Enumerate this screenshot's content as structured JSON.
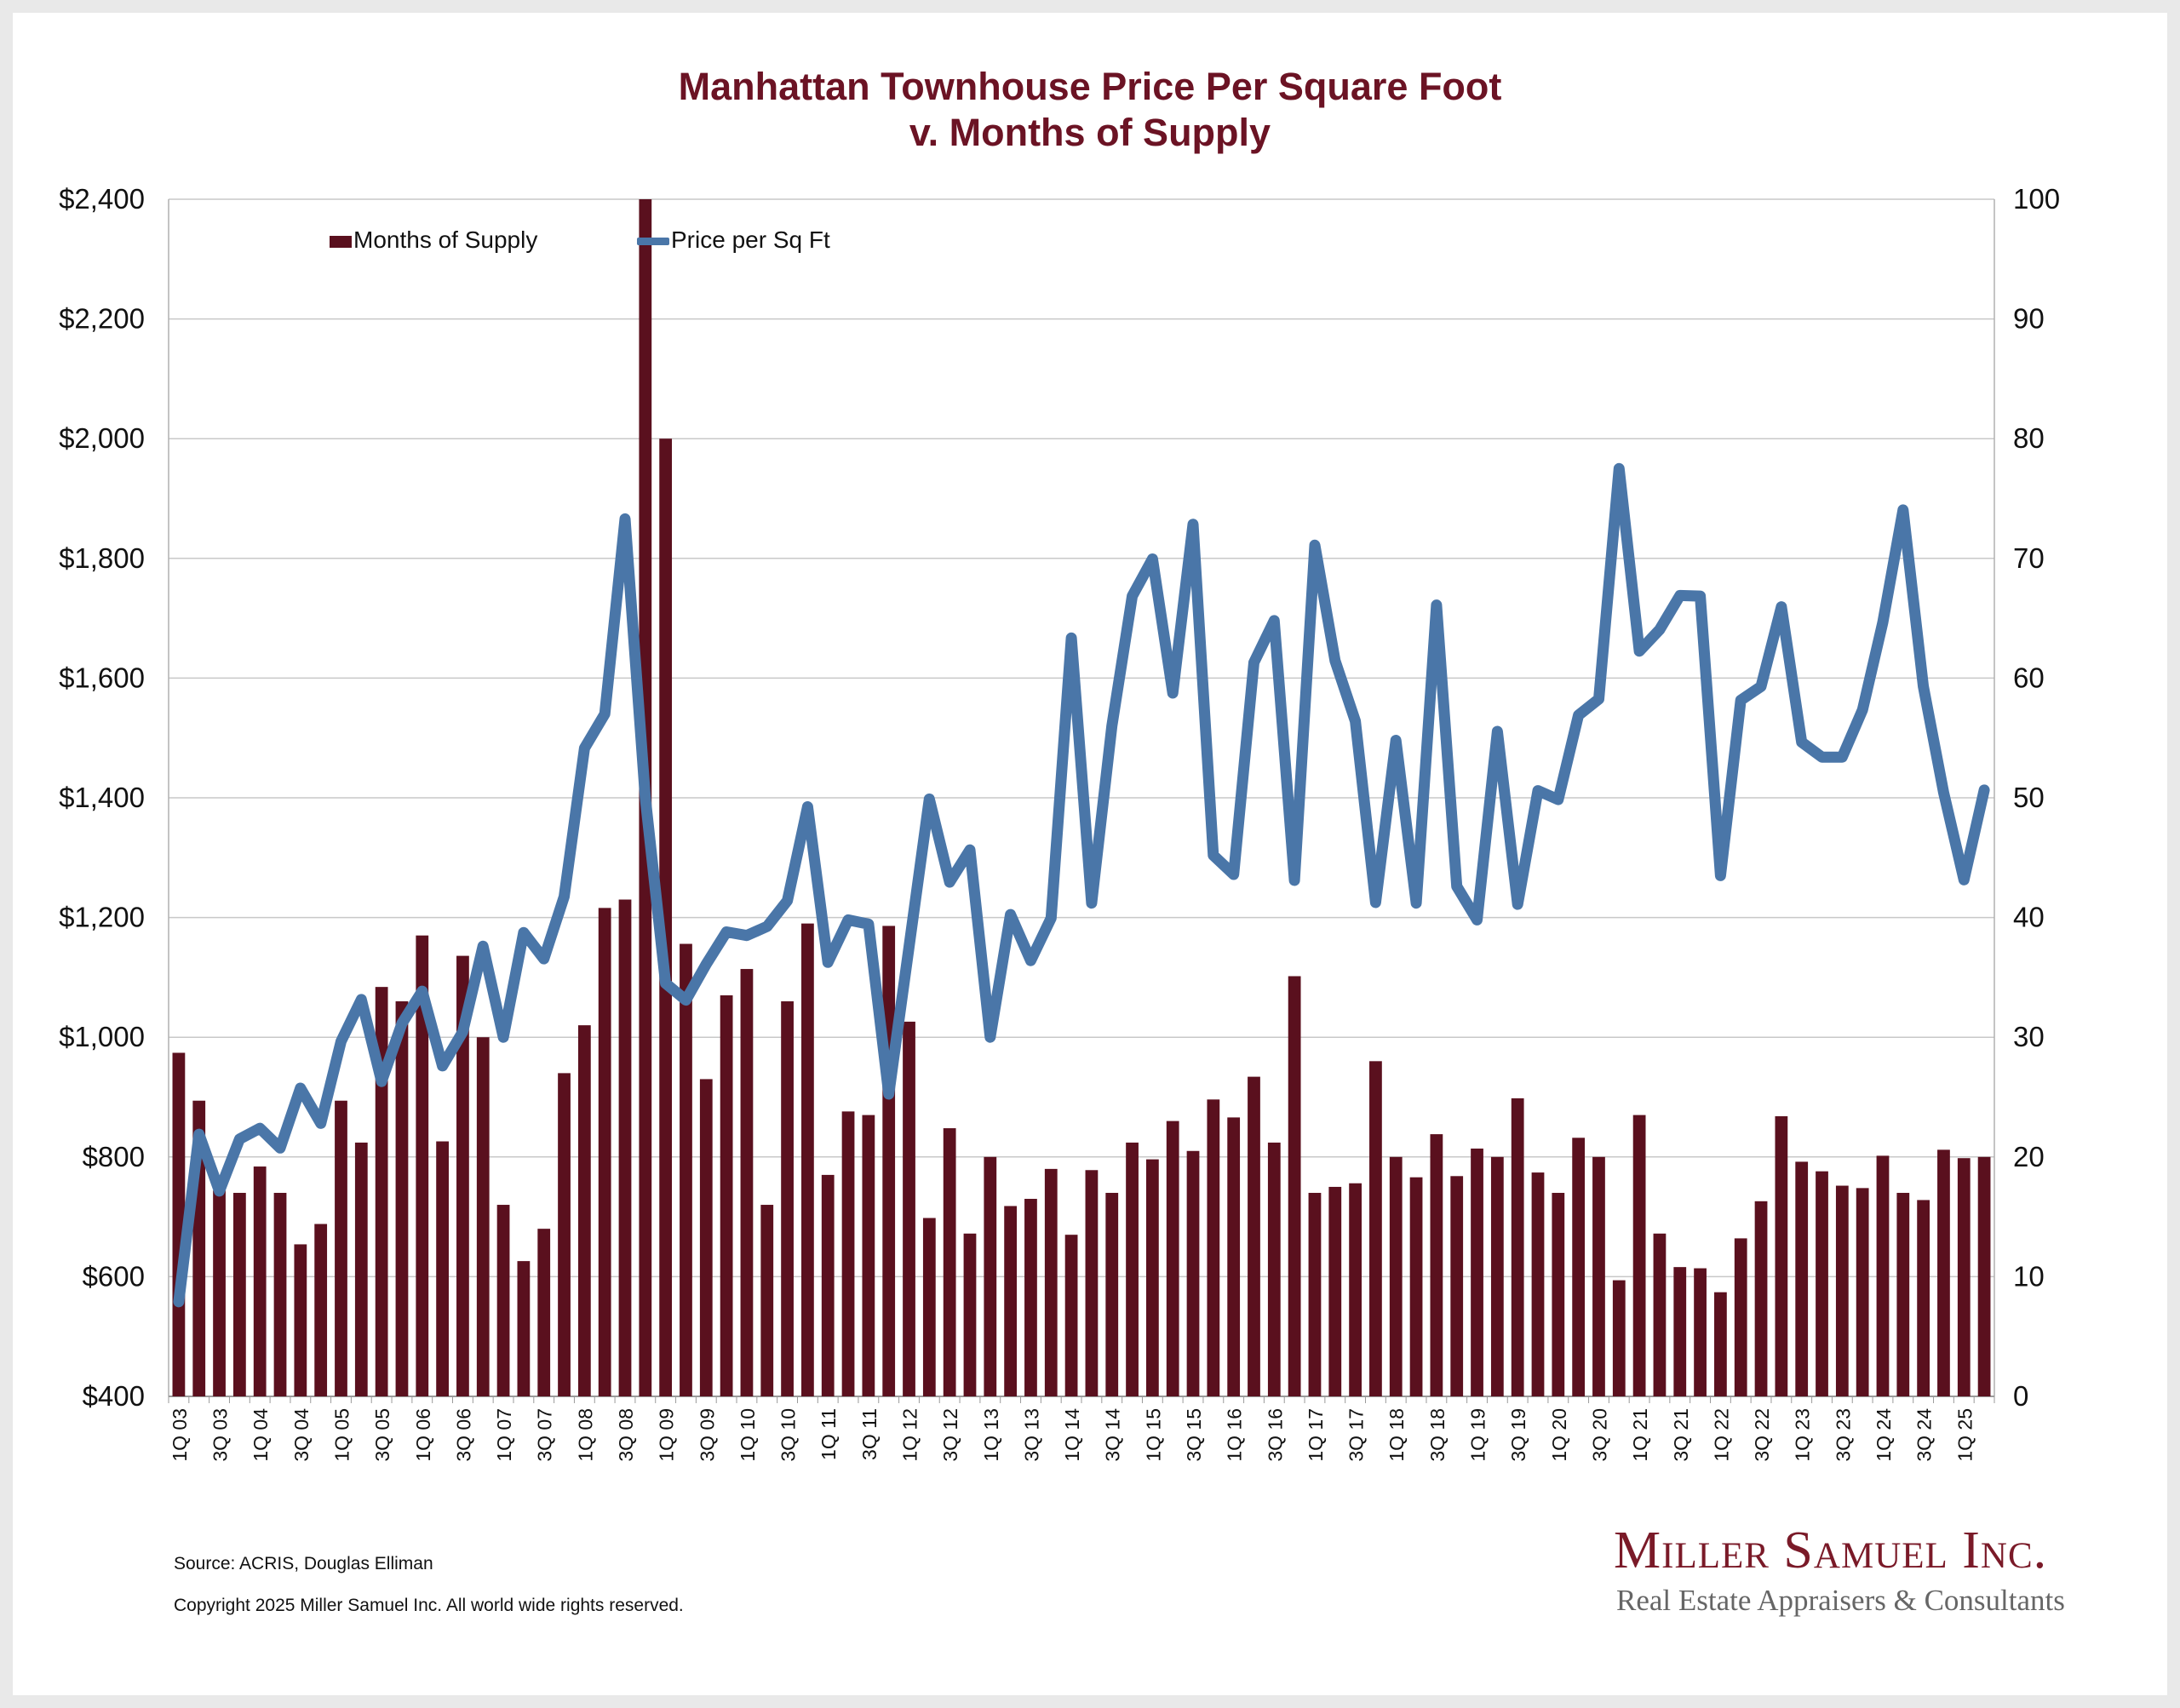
{
  "title_line1": "Manhattan Townhouse Price Per Square Foot",
  "title_line2": "v. Months of Supply",
  "source": "Source: ACRIS, Douglas Elliman",
  "copyright": "Copyright 2025 Miller Samuel Inc.  All world wide rights reserved.",
  "logo": {
    "name": "Miller Samuel Inc.",
    "tagline": "Real Estate Appraisers & Consultants"
  },
  "colors": {
    "bars": "#5a101e",
    "line": "#4a76a8",
    "title": "#6b1324",
    "grid": "#c8c8c8"
  },
  "chart_data": {
    "type": "bar+line",
    "title": "Manhattan Townhouse Price Per Square Foot v. Months of Supply",
    "categories": [
      "1Q 03",
      "2Q 03",
      "3Q 03",
      "4Q 03",
      "1Q 04",
      "2Q 04",
      "3Q 04",
      "4Q 04",
      "1Q 05",
      "2Q 05",
      "3Q 05",
      "4Q 05",
      "1Q 06",
      "2Q 06",
      "3Q 06",
      "4Q 06",
      "1Q 07",
      "2Q 07",
      "3Q 07",
      "4Q 07",
      "1Q 08",
      "2Q 08",
      "3Q 08",
      "4Q 08",
      "1Q 09",
      "2Q 09",
      "3Q 09",
      "4Q 09",
      "1Q 10",
      "2Q 10",
      "3Q 10",
      "4Q 10",
      "1Q 11",
      "2Q 11",
      "3Q 11",
      "4Q 11",
      "1Q 12",
      "2Q 12",
      "3Q 12",
      "4Q 12",
      "1Q 13",
      "2Q 13",
      "3Q 13",
      "4Q 13",
      "1Q 14",
      "2Q 14",
      "3Q 14",
      "4Q 14",
      "1Q 15",
      "2Q 15",
      "3Q 15",
      "4Q 15",
      "1Q 16",
      "2Q 16",
      "3Q 16",
      "4Q 16",
      "1Q 17",
      "2Q 17",
      "3Q 17",
      "4Q 17",
      "1Q 18",
      "2Q 18",
      "3Q 18",
      "4Q 18",
      "1Q 19",
      "2Q 19",
      "3Q 19",
      "4Q 19",
      "1Q 20",
      "2Q 20",
      "3Q 20",
      "4Q 20",
      "1Q 21",
      "2Q 21",
      "3Q 21",
      "4Q 21",
      "1Q 22",
      "2Q 22",
      "3Q 22",
      "4Q 22",
      "1Q 23",
      "2Q 23",
      "3Q 23",
      "4Q 23",
      "1Q 24",
      "2Q 24",
      "3Q 24",
      "4Q 24",
      "1Q 25",
      "2Q 25"
    ],
    "tick_labels": [
      "1Q 03",
      "3Q 03",
      "1Q 04",
      "3Q 04",
      "1Q 05",
      "3Q 05",
      "1Q 06",
      "3Q 06",
      "1Q 07",
      "3Q 07",
      "1Q 08",
      "3Q 08",
      "1Q 09",
      "3Q 09",
      "1Q 10",
      "3Q 10",
      "1Q 11",
      "3Q 11",
      "1Q 12",
      "3Q 12",
      "1Q 13",
      "3Q 13",
      "1Q 14",
      "3Q 14",
      "1Q 15",
      "3Q 15",
      "1Q 16",
      "3Q 16",
      "1Q 17",
      "3Q 17",
      "1Q 18",
      "3Q 18",
      "1Q 19",
      "3Q 19",
      "1Q 20",
      "3Q 20",
      "1Q 21",
      "3Q 21",
      "1Q 22",
      "3Q 22",
      "1Q 23",
      "3Q 23",
      "1Q 24",
      "3Q 24",
      "1Q 25"
    ],
    "series": [
      {
        "name": "Months of Supply",
        "type": "bar",
        "axis": "right",
        "values": [
          28.7,
          24.7,
          17.2,
          17.0,
          19.2,
          17.0,
          12.7,
          14.4,
          24.7,
          21.2,
          34.2,
          33.0,
          38.5,
          21.3,
          36.8,
          30.0,
          16.0,
          11.3,
          14.0,
          27.0,
          31.0,
          40.8,
          41.5,
          100.0,
          80.0,
          37.8,
          26.5,
          33.5,
          35.7,
          16.0,
          33.0,
          39.5,
          18.5,
          23.8,
          23.5,
          39.3,
          31.3,
          14.9,
          22.4,
          13.6,
          20.0,
          15.9,
          16.5,
          19.0,
          13.5,
          18.9,
          17.0,
          21.2,
          19.8,
          23.0,
          20.5,
          24.8,
          23.3,
          26.7,
          21.2,
          35.1,
          17.0,
          17.5,
          17.8,
          28.0,
          20.0,
          18.3,
          21.9,
          18.4,
          20.7,
          20.0,
          24.9,
          18.7,
          17.0,
          21.6,
          20.0,
          9.7,
          23.5,
          13.6,
          10.8,
          10.7,
          8.7,
          13.2,
          16.3,
          23.4,
          19.6,
          18.8,
          17.6,
          17.4,
          20.1,
          17.0,
          16.4,
          20.6,
          19.9,
          20.0
        ]
      },
      {
        "name": "Price per Sq Ft",
        "type": "line",
        "axis": "left",
        "values": [
          558,
          838,
          743,
          830,
          848,
          815,
          915,
          856,
          993,
          1063,
          926,
          1023,
          1077,
          952,
          1009,
          1152,
          1000,
          1175,
          1131,
          1235,
          1483,
          1540,
          1866,
          1400,
          1090,
          1062,
          1122,
          1176,
          1170,
          1185,
          1228,
          1385,
          1125,
          1196,
          1189,
          905,
          1151,
          1398,
          1259,
          1313,
          1000,
          1205,
          1128,
          1199,
          1667,
          1224,
          1520,
          1737,
          1799,
          1575,
          1857,
          1304,
          1272,
          1626,
          1696,
          1262,
          1822,
          1629,
          1528,
          1225,
          1496,
          1224,
          1722,
          1252,
          1196,
          1511,
          1222,
          1412,
          1397,
          1538,
          1565,
          1950,
          1645,
          1681,
          1738,
          1737,
          1270,
          1563,
          1586,
          1719,
          1493,
          1468,
          1468,
          1547,
          1693,
          1881,
          1586,
          1409,
          1263,
          1413
        ]
      }
    ],
    "y_left": {
      "min": 400,
      "max": 2400,
      "step": 200,
      "format": "currency"
    },
    "y_right": {
      "min": 0,
      "max": 100,
      "step": 10
    },
    "legend_position": "top-left",
    "grid": true
  }
}
